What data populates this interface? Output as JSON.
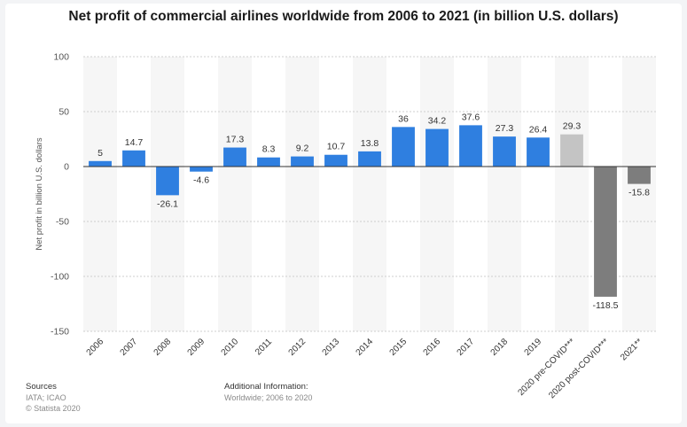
{
  "chart_data": {
    "type": "bar",
    "title": "Net profit of commercial airlines worldwide from 2006 to 2021 (in billion U.S. dollars)",
    "ylabel": "Net profit in billion U.S. dollars",
    "xlabel": "",
    "ylim": [
      -150,
      100
    ],
    "yticks": [
      100,
      50,
      0,
      -50,
      -100,
      -150
    ],
    "grid": true,
    "categories": [
      "2006",
      "2007",
      "2008",
      "2009",
      "2010",
      "2011",
      "2012",
      "2013",
      "2014",
      "2015",
      "2016",
      "2017",
      "2018",
      "2019",
      "2020 pre-COVID***",
      "2020 post-COVID***",
      "2021**"
    ],
    "values": [
      5,
      14.7,
      -26.1,
      -4.6,
      17.3,
      8.3,
      9.2,
      10.7,
      13.8,
      36,
      34.2,
      37.6,
      27.3,
      26.4,
      29.3,
      -118.5,
      -15.8
    ],
    "value_labels": [
      "5",
      "14.7",
      "-26.1",
      "-4.6",
      "17.3",
      "8.3",
      "9.2",
      "10.7",
      "13.8",
      "36",
      "34.2",
      "37.6",
      "27.3",
      "26.4",
      "29.3",
      "-118.5",
      "-15.8"
    ],
    "bar_colors": [
      "#2f7fe0",
      "#2f7fe0",
      "#2f7fe0",
      "#2f7fe0",
      "#2f7fe0",
      "#2f7fe0",
      "#2f7fe0",
      "#2f7fe0",
      "#2f7fe0",
      "#2f7fe0",
      "#2f7fe0",
      "#2f7fe0",
      "#2f7fe0",
      "#2f7fe0",
      "#c4c4c4",
      "#7d7d7d",
      "#7d7d7d"
    ]
  },
  "footer": {
    "sources_heading": "Sources",
    "sources_line1": "IATA; ICAO",
    "sources_line2": "© Statista 2020",
    "additional_heading": "Additional Information:",
    "additional_text": "Worldwide; 2006 to 2020"
  },
  "colors": {
    "bar_primary": "#2f7fe0",
    "bar_forecast_light": "#c4c4c4",
    "bar_forecast_dark": "#7d7d7d"
  }
}
